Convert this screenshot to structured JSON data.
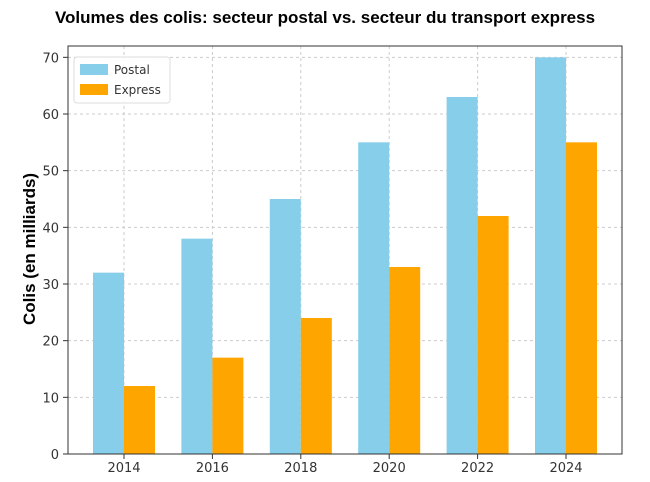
{
  "chart_data": {
    "type": "bar",
    "title": "Volumes des colis: secteur postal vs. secteur du transport express",
    "ylabel": "Colis (en milliards)",
    "xlabel": "",
    "categories": [
      "2014",
      "2016",
      "2018",
      "2020",
      "2022",
      "2024"
    ],
    "series": [
      {
        "name": "Postal",
        "values": [
          32,
          38,
          45,
          55,
          63,
          70
        ],
        "color": "#87CEEB"
      },
      {
        "name": "Express",
        "values": [
          12,
          17,
          24,
          33,
          42,
          55
        ],
        "color": "#FFA500"
      }
    ],
    "ylim": [
      0,
      72
    ],
    "yticks": [
      "0",
      "10",
      "20",
      "30",
      "40",
      "50",
      "60",
      "70"
    ],
    "grid": true,
    "legend_position": "top-left"
  }
}
